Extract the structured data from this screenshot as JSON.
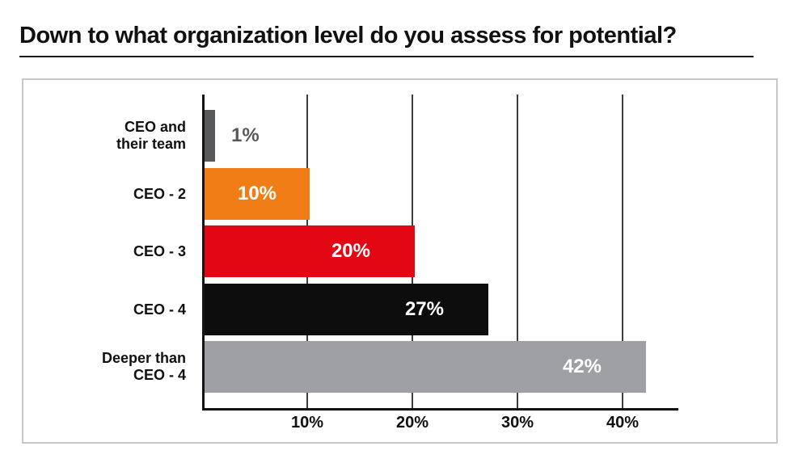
{
  "title": {
    "text": "Down to what organization level do you assess for potential?"
  },
  "chart_data": {
    "type": "bar",
    "orientation": "horizontal",
    "title": "Down to what organization level do you assess for potential?",
    "categories": [
      "CEO and their team",
      "CEO - 2",
      "CEO - 3",
      "CEO - 4",
      "Deeper than CEO - 4"
    ],
    "category_lines": [
      [
        "CEO and",
        "their team"
      ],
      [
        "CEO - 2"
      ],
      [
        "CEO - 3"
      ],
      [
        "CEO - 4"
      ],
      [
        "Deeper than",
        "CEO - 4"
      ]
    ],
    "values": [
      1,
      10,
      20,
      27,
      42
    ],
    "value_labels": [
      "1%",
      "10%",
      "20%",
      "27%",
      "42%"
    ],
    "bar_colors": [
      "#58595b",
      "#f07d16",
      "#e30613",
      "#0d0d0d",
      "#9ea0a3"
    ],
    "label_placements": [
      "outside",
      "center",
      "inside-right",
      "inside-right",
      "inside-right"
    ],
    "x_ticks": [
      "10%",
      "20%",
      "30%",
      "40%"
    ],
    "x_tick_values": [
      10,
      20,
      30,
      40
    ],
    "xlim": [
      0,
      45.3
    ],
    "grid": "vertical",
    "legend": "none",
    "xlabel": "",
    "ylabel": ""
  },
  "colors": {
    "value_label_inside": "#ffffff",
    "value_label_outside": "#58595b",
    "gridline": "#3e3e3e",
    "axis": "#141414",
    "frame_border": "#c8c8c8",
    "title_underline": "#1a1a1a",
    "background": "#ffffff"
  }
}
